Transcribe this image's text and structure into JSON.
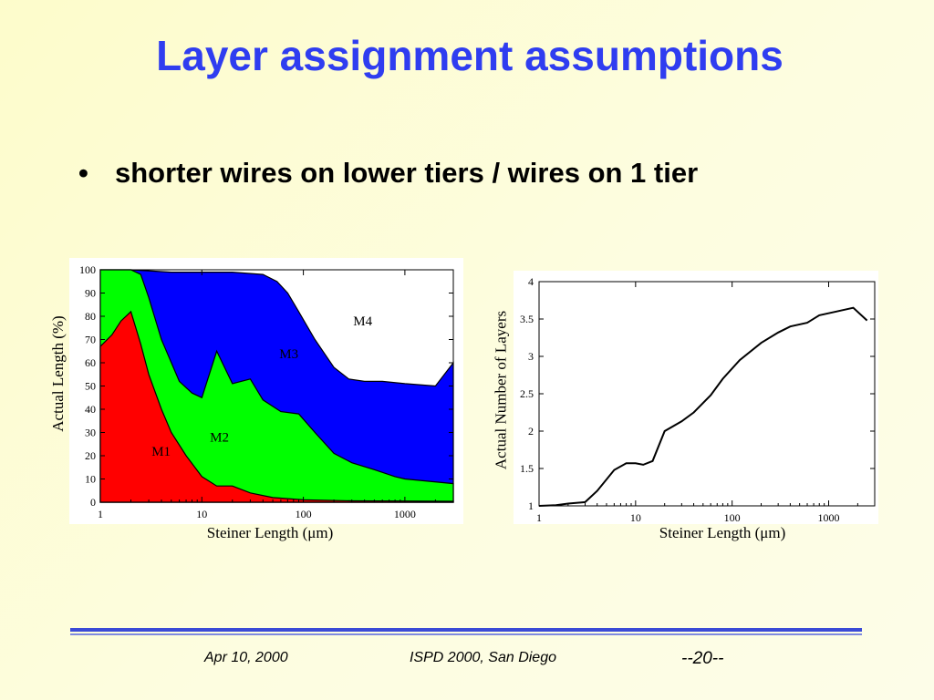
{
  "slide": {
    "title": "Layer assignment assumptions",
    "bullet_symbol": "•",
    "bullet": "shorter wires on lower tiers / wires on 1 tier"
  },
  "footer": {
    "date": "Apr 10, 2000",
    "venue": "ISPD 2000, San Diego",
    "page": "--20--"
  },
  "colors": {
    "title": "#2f3df0",
    "M1": "#ff0000",
    "M2": "#00ff00",
    "M3": "#0000ff",
    "M4": "#ffffff",
    "rule": "#3b4ad6"
  },
  "chart_data": [
    {
      "type": "area",
      "stacked": true,
      "x_scale": "log",
      "xlabel": "Steiner Length (μm)",
      "ylabel": "Actual Length (%)",
      "xlim": [
        1,
        3000
      ],
      "ylim": [
        0,
        100
      ],
      "x_ticks": [
        "1",
        "10",
        "100",
        "1000"
      ],
      "y_ticks": [
        "0",
        "10",
        "20",
        "30",
        "40",
        "50",
        "60",
        "70",
        "80",
        "90",
        "100"
      ],
      "boundaries": [
        {
          "name": "M1",
          "points": [
            [
              1,
              67
            ],
            [
              1.3,
              72
            ],
            [
              1.6,
              78
            ],
            [
              2.0,
              82
            ],
            [
              2.5,
              68
            ],
            [
              3.0,
              55
            ],
            [
              4.0,
              40
            ],
            [
              5.0,
              30
            ],
            [
              7.0,
              20
            ],
            [
              10,
              11
            ],
            [
              14,
              7
            ],
            [
              20,
              7
            ],
            [
              30,
              4
            ],
            [
              50,
              2
            ],
            [
              100,
              1
            ],
            [
              300,
              0.6
            ],
            [
              1000,
              0.5
            ],
            [
              3000,
              0.4
            ]
          ]
        },
        {
          "name": "M2",
          "points": [
            [
              1,
              100
            ],
            [
              2.0,
              100
            ],
            [
              2.5,
              98
            ],
            [
              3.0,
              88
            ],
            [
              4.0,
              70
            ],
            [
              6.0,
              52
            ],
            [
              8.0,
              47
            ],
            [
              10,
              45
            ],
            [
              14,
              65
            ],
            [
              20,
              51
            ],
            [
              30,
              53
            ],
            [
              40,
              44
            ],
            [
              60,
              39
            ],
            [
              90,
              38
            ],
            [
              130,
              30
            ],
            [
              200,
              21
            ],
            [
              300,
              17
            ],
            [
              500,
              14
            ],
            [
              800,
              11
            ],
            [
              1000,
              10
            ],
            [
              3000,
              8
            ]
          ]
        },
        {
          "name": "M3",
          "points": [
            [
              1,
              100
            ],
            [
              2.0,
              100
            ],
            [
              5.0,
              99
            ],
            [
              10,
              99
            ],
            [
              20,
              99
            ],
            [
              40,
              98
            ],
            [
              55,
              95
            ],
            [
              70,
              90
            ],
            [
              90,
              82
            ],
            [
              130,
              70
            ],
            [
              200,
              58
            ],
            [
              280,
              53
            ],
            [
              400,
              52
            ],
            [
              600,
              52
            ],
            [
              1000,
              51
            ],
            [
              2000,
              50
            ],
            [
              3000,
              60
            ]
          ]
        }
      ],
      "series": [
        {
          "name": "M1",
          "label": "M1"
        },
        {
          "name": "M2",
          "label": "M2"
        },
        {
          "name": "M3",
          "label": "M3"
        },
        {
          "name": "M4",
          "label": "M4"
        }
      ]
    },
    {
      "type": "line",
      "x_scale": "log",
      "xlabel": "Steiner Length (μm)",
      "ylabel": "Actual Number of Layers",
      "xlim": [
        1,
        3000
      ],
      "ylim": [
        1,
        4
      ],
      "x_ticks": [
        "1",
        "10",
        "100",
        "1000"
      ],
      "y_ticks": [
        "1",
        "1.5",
        "2",
        "2.5",
        "3",
        "3.5",
        "4"
      ],
      "series": [
        {
          "points": [
            [
              1,
              1.0
            ],
            [
              1.5,
              1.01
            ],
            [
              2,
              1.03
            ],
            [
              3,
              1.05
            ],
            [
              4,
              1.2
            ],
            [
              6,
              1.48
            ],
            [
              8,
              1.57
            ],
            [
              10,
              1.57
            ],
            [
              12,
              1.55
            ],
            [
              15,
              1.6
            ],
            [
              20,
              2.0
            ],
            [
              30,
              2.13
            ],
            [
              40,
              2.25
            ],
            [
              60,
              2.48
            ],
            [
              80,
              2.7
            ],
            [
              120,
              2.95
            ],
            [
              200,
              3.18
            ],
            [
              300,
              3.32
            ],
            [
              400,
              3.4
            ],
            [
              600,
              3.45
            ],
            [
              800,
              3.55
            ],
            [
              1200,
              3.6
            ],
            [
              1800,
              3.65
            ],
            [
              2500,
              3.48
            ]
          ]
        }
      ]
    }
  ]
}
